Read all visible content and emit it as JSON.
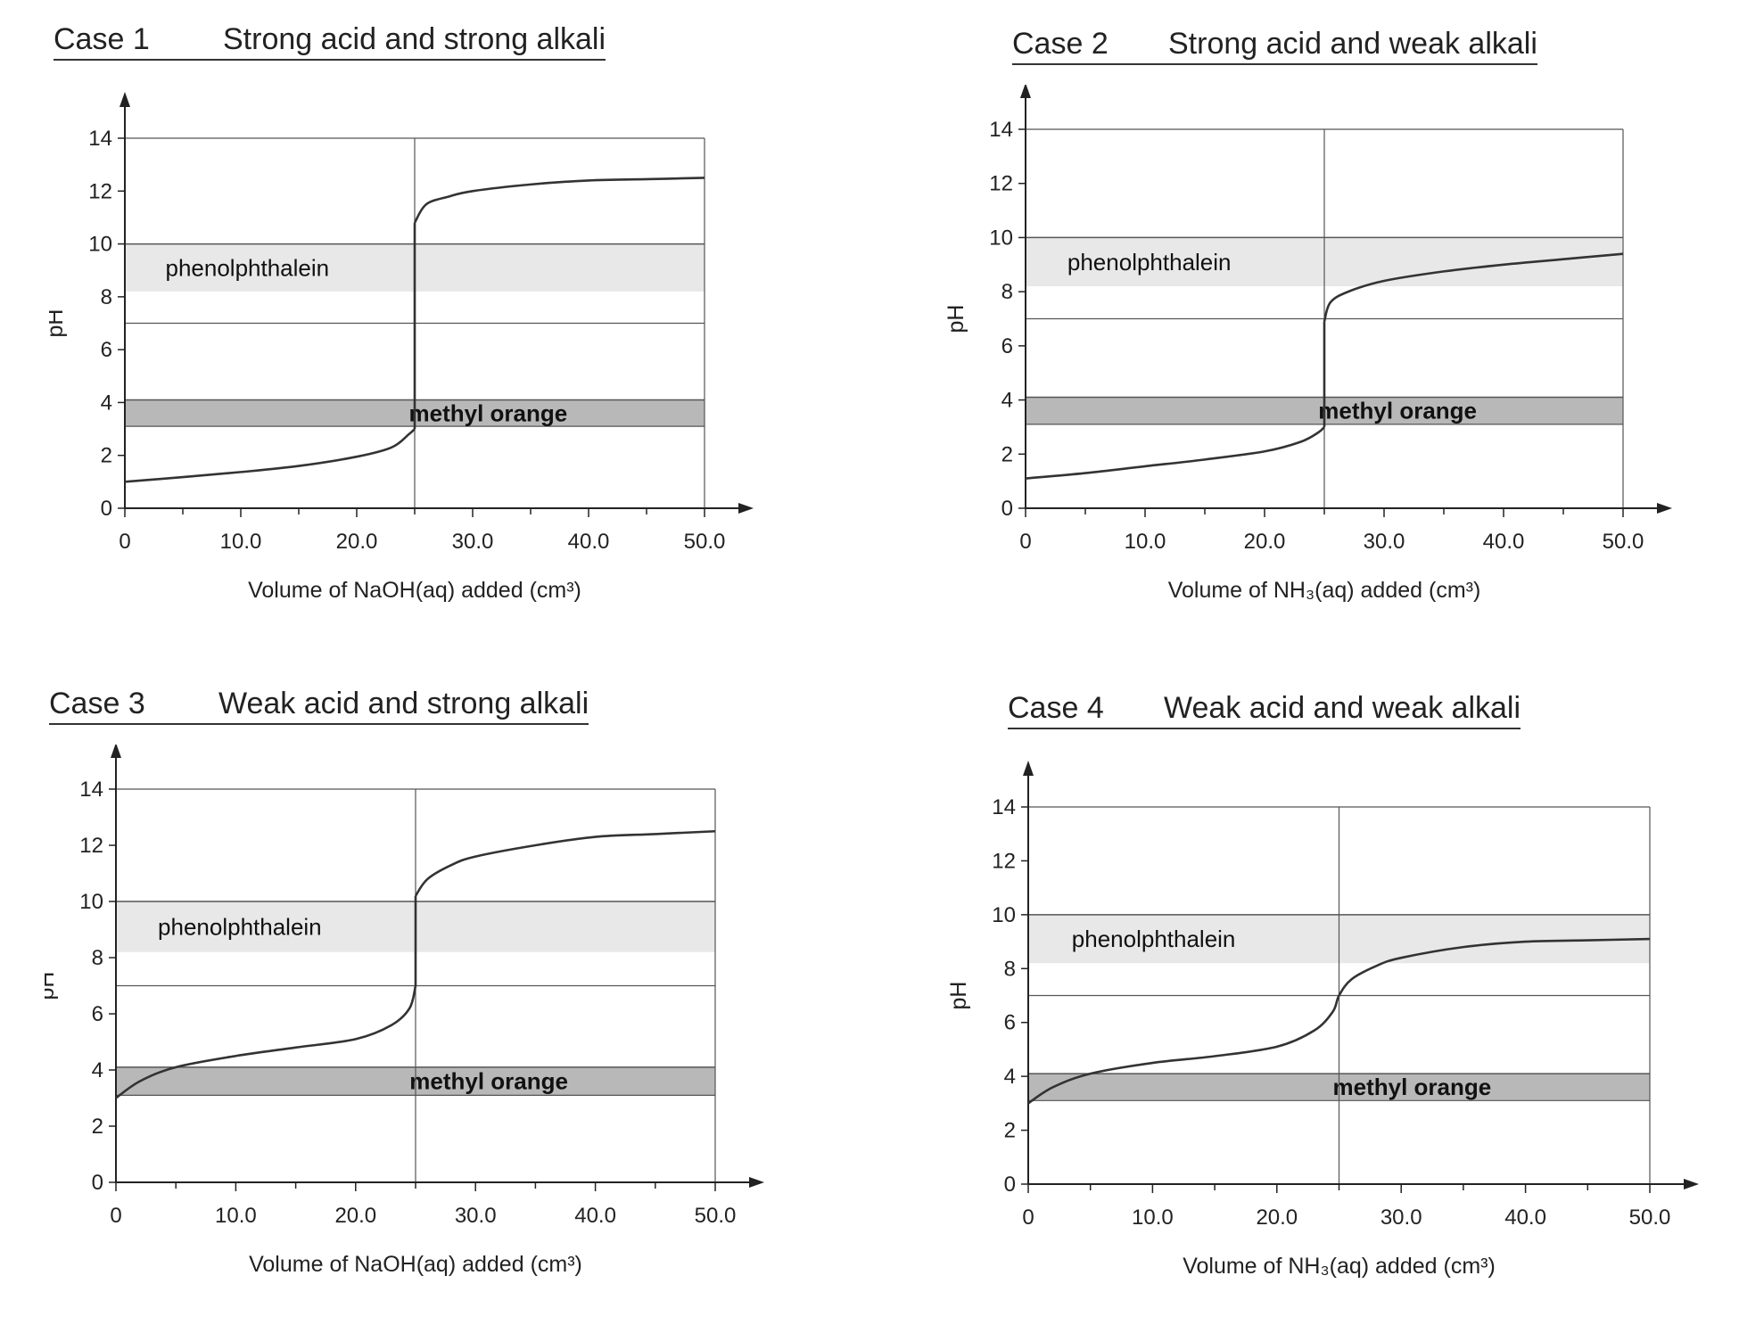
{
  "style": {
    "axis_color": "#222222",
    "curve_color": "#333333",
    "phenolphthalein_band_color": "#e8e8e8",
    "methyl_orange_band_color": "#b8b8b8",
    "guide_color": "#555555"
  },
  "chart_data": [
    {
      "type": "line",
      "case_label": "Case 1",
      "title": "Strong acid and strong alkali",
      "xlabel": "Volume of NaOH(aq) added (cm³)",
      "ylabel": "pH",
      "xlim": [
        0,
        50
      ],
      "ylim": [
        0,
        14
      ],
      "x_ticks": [
        "0",
        "10.0",
        "20.0",
        "30.0",
        "40.0",
        "50.0"
      ],
      "y_ticks": [
        "0",
        "2",
        "4",
        "6",
        "8",
        "10",
        "12",
        "14"
      ],
      "equivalence_volume": 25,
      "neutral_line_pH": 7,
      "bands": [
        {
          "name": "phenolphthalein",
          "range": [
            8.2,
            10.0
          ]
        },
        {
          "name": "methyl orange",
          "range": [
            3.1,
            4.1
          ]
        }
      ],
      "series": [
        {
          "points": [
            [
              0,
              1.0
            ],
            [
              5,
              1.18
            ],
            [
              10,
              1.37
            ],
            [
              15,
              1.6
            ],
            [
              20,
              1.95
            ],
            [
              23,
              2.3
            ],
            [
              24.5,
              2.8
            ],
            [
              25,
              3.0
            ],
            [
              25,
              10.8
            ],
            [
              26,
              11.5
            ],
            [
              28,
              11.8
            ],
            [
              30,
              12.0
            ],
            [
              35,
              12.25
            ],
            [
              40,
              12.4
            ],
            [
              45,
              12.45
            ],
            [
              50,
              12.5
            ]
          ]
        }
      ]
    },
    {
      "type": "line",
      "case_label": "Case 2",
      "title": "Strong acid and weak alkali",
      "xlabel": "Volume of NH₃(aq) added (cm³)",
      "ylabel": "pH",
      "xlim": [
        0,
        50
      ],
      "ylim": [
        0,
        14
      ],
      "x_ticks": [
        "0",
        "10.0",
        "20.0",
        "30.0",
        "40.0",
        "50.0"
      ],
      "y_ticks": [
        "0",
        "2",
        "4",
        "6",
        "8",
        "10",
        "12",
        "14"
      ],
      "equivalence_volume": 25,
      "neutral_line_pH": 7,
      "bands": [
        {
          "name": "phenolphthalein",
          "range": [
            8.2,
            10.0
          ]
        },
        {
          "name": "methyl orange",
          "range": [
            3.1,
            4.1
          ]
        }
      ],
      "series": [
        {
          "points": [
            [
              0,
              1.1
            ],
            [
              5,
              1.3
            ],
            [
              10,
              1.55
            ],
            [
              15,
              1.8
            ],
            [
              20,
              2.1
            ],
            [
              23,
              2.45
            ],
            [
              24.5,
              2.8
            ],
            [
              25,
              3.0
            ],
            [
              25,
              6.9
            ],
            [
              25.5,
              7.6
            ],
            [
              27,
              8.0
            ],
            [
              30,
              8.4
            ],
            [
              35,
              8.75
            ],
            [
              40,
              9.0
            ],
            [
              45,
              9.2
            ],
            [
              50,
              9.4
            ]
          ]
        }
      ]
    },
    {
      "type": "line",
      "case_label": "Case 3",
      "title": "Weak acid and strong alkali",
      "xlabel": "Volume of NaOH(aq) added (cm³)",
      "ylabel": "pH",
      "xlim": [
        0,
        50
      ],
      "ylim": [
        0,
        14
      ],
      "x_ticks": [
        "0",
        "10.0",
        "20.0",
        "30.0",
        "40.0",
        "50.0"
      ],
      "y_ticks": [
        "0",
        "2",
        "4",
        "6",
        "8",
        "10",
        "12",
        "14"
      ],
      "equivalence_volume": 25,
      "neutral_line_pH": 7,
      "bands": [
        {
          "name": "phenolphthalein",
          "range": [
            8.2,
            10.0
          ]
        },
        {
          "name": "methyl orange",
          "range": [
            3.1,
            4.1
          ]
        }
      ],
      "series": [
        {
          "points": [
            [
              0,
              3.0
            ],
            [
              2,
              3.6
            ],
            [
              5,
              4.1
            ],
            [
              10,
              4.5
            ],
            [
              15,
              4.8
            ],
            [
              20,
              5.1
            ],
            [
              23,
              5.6
            ],
            [
              24.5,
              6.2
            ],
            [
              25,
              7.0
            ],
            [
              25,
              10.2
            ],
            [
              26,
              10.8
            ],
            [
              28,
              11.3
            ],
            [
              30,
              11.6
            ],
            [
              35,
              12.0
            ],
            [
              40,
              12.3
            ],
            [
              45,
              12.4
            ],
            [
              50,
              12.5
            ]
          ]
        }
      ]
    },
    {
      "type": "line",
      "case_label": "Case 4",
      "title": "Weak acid and weak alkali",
      "xlabel": "Volume of NH₃(aq) added (cm³)",
      "ylabel": "pH",
      "xlim": [
        0,
        50
      ],
      "ylim": [
        0,
        14
      ],
      "x_ticks": [
        "0",
        "10.0",
        "20.0",
        "30.0",
        "40.0",
        "50.0"
      ],
      "y_ticks": [
        "0",
        "2",
        "4",
        "6",
        "8",
        "10",
        "12",
        "14"
      ],
      "equivalence_volume": 25,
      "neutral_line_pH": 7,
      "bands": [
        {
          "name": "phenolphthalein",
          "range": [
            8.2,
            10.0
          ]
        },
        {
          "name": "methyl orange",
          "range": [
            3.1,
            4.1
          ]
        }
      ],
      "series": [
        {
          "points": [
            [
              0,
              3.0
            ],
            [
              2,
              3.6
            ],
            [
              5,
              4.1
            ],
            [
              10,
              4.5
            ],
            [
              15,
              4.75
            ],
            [
              20,
              5.1
            ],
            [
              23,
              5.7
            ],
            [
              24.5,
              6.4
            ],
            [
              25,
              7.0
            ],
            [
              26,
              7.6
            ],
            [
              28,
              8.1
            ],
            [
              30,
              8.4
            ],
            [
              35,
              8.8
            ],
            [
              40,
              9.0
            ],
            [
              45,
              9.05
            ],
            [
              50,
              9.1
            ]
          ]
        }
      ]
    }
  ]
}
